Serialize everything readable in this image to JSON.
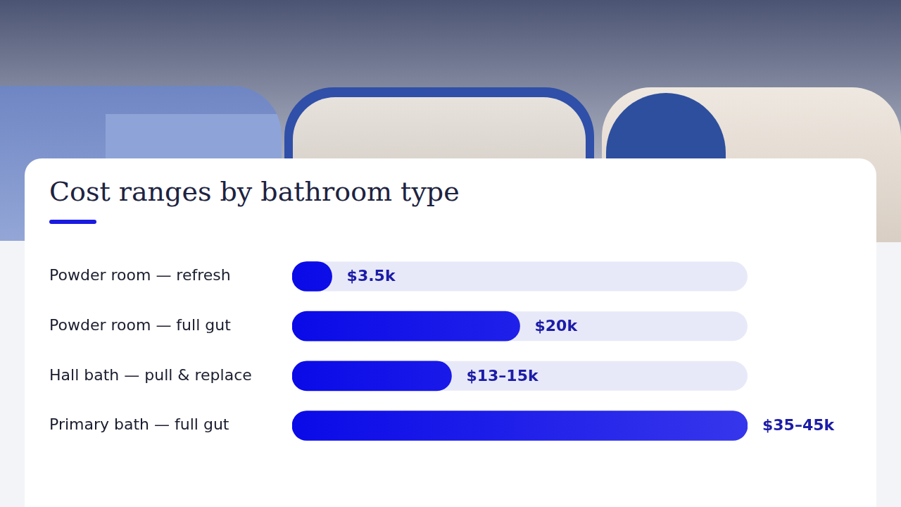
{
  "chart_data": {
    "type": "bar",
    "title": "Cost ranges by bathroom type",
    "orientation": "horizontal",
    "categories": [
      "Powder room — refresh",
      "Powder room — full gut",
      "Hall bath — pull & replace",
      "Primary bath — full gut"
    ],
    "values": [
      3500,
      20000,
      14000,
      40000
    ],
    "value_labels": [
      "$3.5k",
      "$20k",
      "$13–15k",
      "$35–45k"
    ],
    "data_labels": true,
    "color": "#0a0ae8",
    "xlim": [
      0,
      40000
    ],
    "grid": false,
    "tick_labels": "y"
  }
}
